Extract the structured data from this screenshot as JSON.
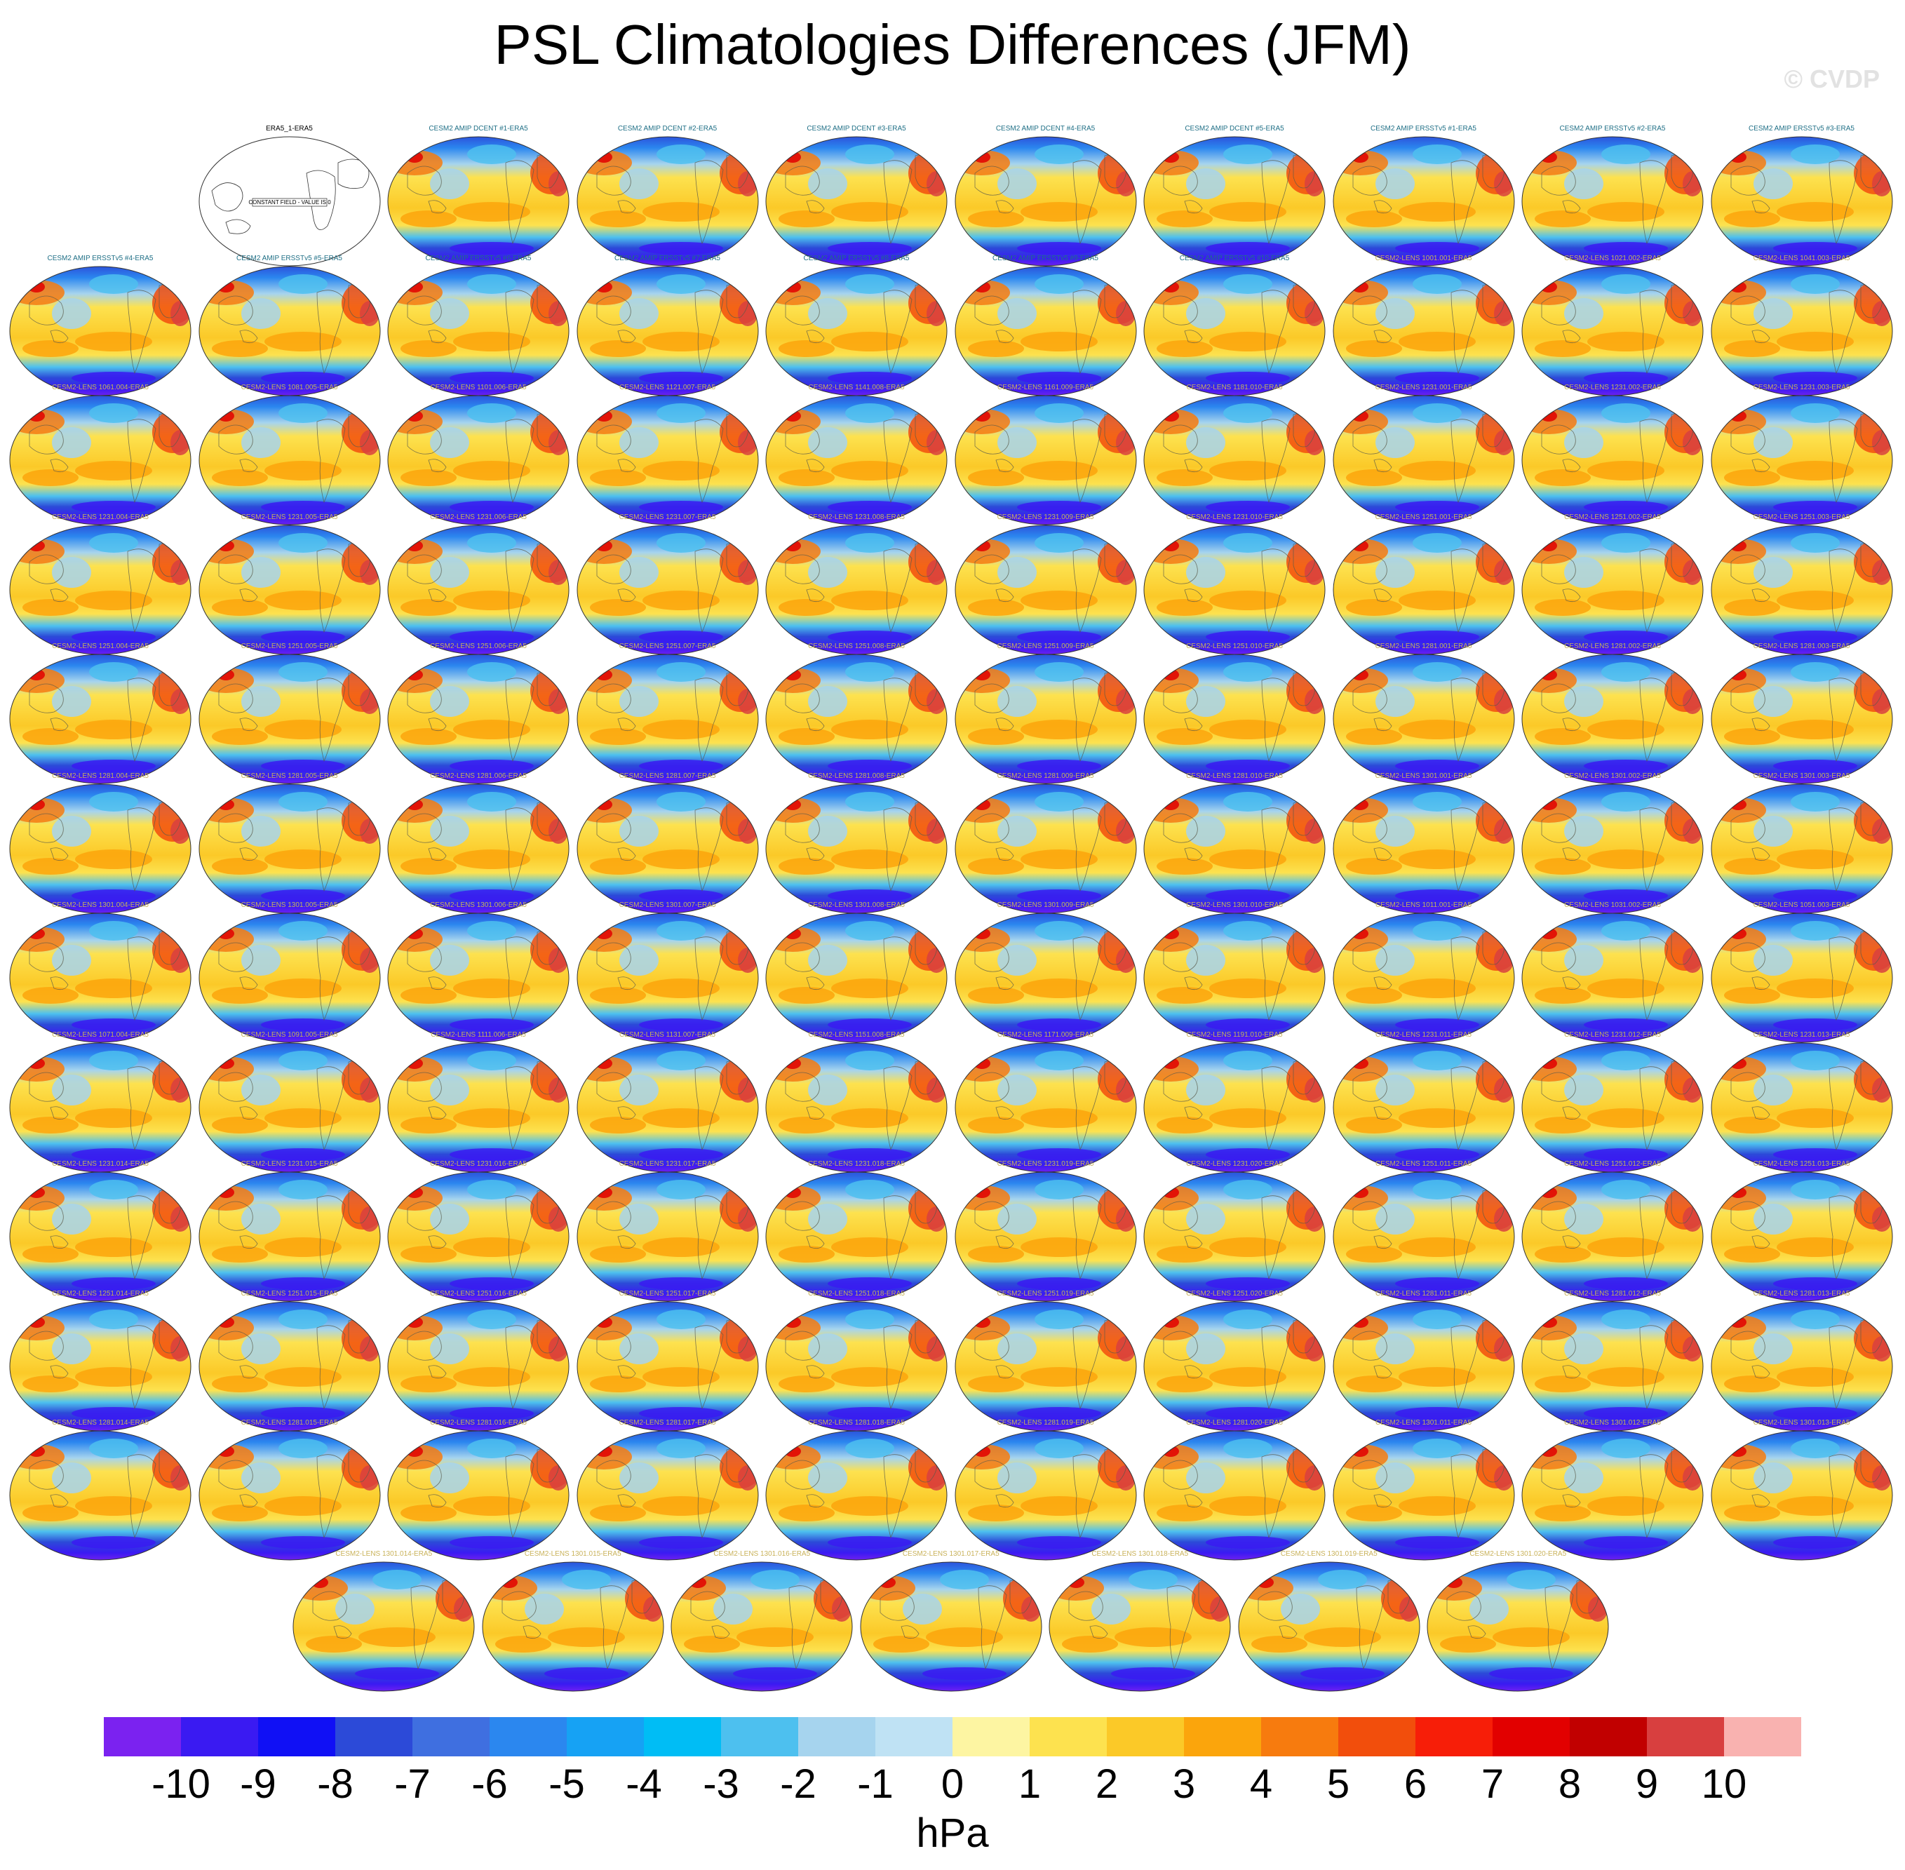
{
  "title": "PSL Climatologies Differences (JFM)",
  "watermark": "© CVDP",
  "chart_data": {
    "type": "heatmap",
    "title": "PSL Climatologies Differences (JFM)",
    "projection": "global map panels (Robinson-style ellipse)",
    "units": "hPa",
    "colorbar": {
      "tick_labels": [
        "-10",
        "-9",
        "-8",
        "-7",
        "-6",
        "-5",
        "-4",
        "-3",
        "-2",
        "-1",
        "0",
        "1",
        "2",
        "3",
        "4",
        "5",
        "6",
        "7",
        "8",
        "9",
        "10"
      ],
      "colors": [
        "#7b22f0",
        "#3a1af2",
        "#1010f5",
        "#2c4ad8",
        "#3f6fe0",
        "#2b87ef",
        "#16a2f4",
        "#00bdf5",
        "#4dc0ef",
        "#a6d4ee",
        "#bfe2f4",
        "#fdf5a2",
        "#fde24f",
        "#fbc928",
        "#fba50c",
        "#f77b0e",
        "#f24e0c",
        "#f71e08",
        "#e20000",
        "#c10000",
        "#d83f3f",
        "#f9b2b0"
      ]
    },
    "panels": [
      {
        "label": "ERA5_1-ERA5",
        "reference": true,
        "note": "CONSTANT FIELD - VALUE IS 0"
      },
      {
        "label": "CESM2 AMIP DCENT #1-ERA5",
        "group": "amip"
      },
      {
        "label": "CESM2 AMIP DCENT #2-ERA5",
        "group": "amip"
      },
      {
        "label": "CESM2 AMIP DCENT #3-ERA5",
        "group": "amip"
      },
      {
        "label": "CESM2 AMIP DCENT #4-ERA5",
        "group": "amip"
      },
      {
        "label": "CESM2 AMIP DCENT #5-ERA5",
        "group": "amip"
      },
      {
        "label": "CESM2 AMIP ERSSTv5 #1-ERA5",
        "group": "amip"
      },
      {
        "label": "CESM2 AMIP ERSSTv5 #2-ERA5",
        "group": "amip"
      },
      {
        "label": "CESM2 AMIP ERSSTv5 #3-ERA5",
        "group": "amip"
      },
      {
        "label": "CESM2 AMIP ERSSTv5 #4-ERA5",
        "group": "amip"
      },
      {
        "label": "CESM2 AMIP ERSSTv5 #5-ERA5",
        "group": "amip"
      },
      {
        "label": "CESM2 AMIP ERSSTv5 #6-ERA5",
        "group": "amip"
      },
      {
        "label": "CESM2 AMIP ERSSTv5 #7-ERA5",
        "group": "amip"
      },
      {
        "label": "CESM2 AMIP ERSSTv5 #8-ERA5",
        "group": "amip"
      },
      {
        "label": "CESM2 AMIP ERSSTv5 #9-ERA5",
        "group": "amip"
      },
      {
        "label": "CESM2 AMIP ERSSTv5 #10-ERA5",
        "group": "amip"
      },
      {
        "label": "CESM2-LENS 1001.001-ERA5",
        "group": "lens"
      },
      {
        "label": "CESM2-LENS 1021.002-ERA5",
        "group": "lens"
      },
      {
        "label": "CESM2-LENS 1041.003-ERA5",
        "group": "lens"
      },
      {
        "label": "CESM2-LENS 1061.004-ERA5",
        "group": "lens"
      },
      {
        "label": "CESM2-LENS 1081.005-ERA5",
        "group": "lens"
      },
      {
        "label": "CESM2-LENS 1101.006-ERA5",
        "group": "lens"
      },
      {
        "label": "CESM2-LENS 1121.007-ERA5",
        "group": "lens"
      },
      {
        "label": "CESM2-LENS 1141.008-ERA5",
        "group": "lens"
      },
      {
        "label": "CESM2-LENS 1161.009-ERA5",
        "group": "lens"
      },
      {
        "label": "CESM2-LENS 1181.010-ERA5",
        "group": "lens"
      },
      {
        "label": "CESM2-LENS 1231.001-ERA5",
        "group": "lens"
      },
      {
        "label": "CESM2-LENS 1231.002-ERA5",
        "group": "lens"
      },
      {
        "label": "CESM2-LENS 1231.003-ERA5",
        "group": "lens"
      },
      {
        "label": "CESM2-LENS 1231.004-ERA5",
        "group": "lens"
      },
      {
        "label": "CESM2-LENS 1231.005-ERA5",
        "group": "lens"
      },
      {
        "label": "CESM2-LENS 1231.006-ERA5",
        "group": "lens"
      },
      {
        "label": "CESM2-LENS 1231.007-ERA5",
        "group": "lens"
      },
      {
        "label": "CESM2-LENS 1231.008-ERA5",
        "group": "lens"
      },
      {
        "label": "CESM2-LENS 1231.009-ERA5",
        "group": "lens"
      },
      {
        "label": "CESM2-LENS 1231.010-ERA5",
        "group": "lens"
      },
      {
        "label": "CESM2-LENS 1251.001-ERA5",
        "group": "lens"
      },
      {
        "label": "CESM2-LENS 1251.002-ERA5",
        "group": "lens"
      },
      {
        "label": "CESM2-LENS 1251.003-ERA5",
        "group": "lens"
      },
      {
        "label": "CESM2-LENS 1251.004-ERA5",
        "group": "lens"
      },
      {
        "label": "CESM2-LENS 1251.005-ERA5",
        "group": "lens"
      },
      {
        "label": "CESM2-LENS 1251.006-ERA5",
        "group": "lens"
      },
      {
        "label": "CESM2-LENS 1251.007-ERA5",
        "group": "lens"
      },
      {
        "label": "CESM2-LENS 1251.008-ERA5",
        "group": "lens"
      },
      {
        "label": "CESM2-LENS 1251.009-ERA5",
        "group": "lens"
      },
      {
        "label": "CESM2-LENS 1251.010-ERA5",
        "group": "lens"
      },
      {
        "label": "CESM2-LENS 1281.001-ERA5",
        "group": "lens"
      },
      {
        "label": "CESM2-LENS 1281.002-ERA5",
        "group": "lens"
      },
      {
        "label": "CESM2-LENS 1281.003-ERA5",
        "group": "lens"
      },
      {
        "label": "CESM2-LENS 1281.004-ERA5",
        "group": "lens"
      },
      {
        "label": "CESM2-LENS 1281.005-ERA5",
        "group": "lens"
      },
      {
        "label": "CESM2-LENS 1281.006-ERA5",
        "group": "lens"
      },
      {
        "label": "CESM2-LENS 1281.007-ERA5",
        "group": "lens"
      },
      {
        "label": "CESM2-LENS 1281.008-ERA5",
        "group": "lens"
      },
      {
        "label": "CESM2-LENS 1281.009-ERA5",
        "group": "lens"
      },
      {
        "label": "CESM2-LENS 1281.010-ERA5",
        "group": "lens"
      },
      {
        "label": "CESM2-LENS 1301.001-ERA5",
        "group": "lens"
      },
      {
        "label": "CESM2-LENS 1301.002-ERA5",
        "group": "lens"
      },
      {
        "label": "CESM2-LENS 1301.003-ERA5",
        "group": "lens"
      },
      {
        "label": "CESM2-LENS 1301.004-ERA5",
        "group": "lens"
      },
      {
        "label": "CESM2-LENS 1301.005-ERA5",
        "group": "lens"
      },
      {
        "label": "CESM2-LENS 1301.006-ERA5",
        "group": "lens"
      },
      {
        "label": "CESM2-LENS 1301.007-ERA5",
        "group": "lens"
      },
      {
        "label": "CESM2-LENS 1301.008-ERA5",
        "group": "lens"
      },
      {
        "label": "CESM2-LENS 1301.009-ERA5",
        "group": "lens"
      },
      {
        "label": "CESM2-LENS 1301.010-ERA5",
        "group": "lens"
      },
      {
        "label": "CESM2-LENS 1011.001-ERA5",
        "group": "lens"
      },
      {
        "label": "CESM2-LENS 1031.002-ERA5",
        "group": "lens"
      },
      {
        "label": "CESM2-LENS 1051.003-ERA5",
        "group": "lens"
      },
      {
        "label": "CESM2-LENS 1071.004-ERA5",
        "group": "lens"
      },
      {
        "label": "CESM2-LENS 1091.005-ERA5",
        "group": "lens"
      },
      {
        "label": "CESM2-LENS 1111.006-ERA5",
        "group": "lens"
      },
      {
        "label": "CESM2-LENS 1131.007-ERA5",
        "group": "lens"
      },
      {
        "label": "CESM2-LENS 1151.008-ERA5",
        "group": "lens"
      },
      {
        "label": "CESM2-LENS 1171.009-ERA5",
        "group": "lens"
      },
      {
        "label": "CESM2-LENS 1191.010-ERA5",
        "group": "lens"
      },
      {
        "label": "CESM2-LENS 1231.011-ERA5",
        "group": "lens"
      },
      {
        "label": "CESM2-LENS 1231.012-ERA5",
        "group": "lens"
      },
      {
        "label": "CESM2-LENS 1231.013-ERA5",
        "group": "lens"
      },
      {
        "label": "CESM2-LENS 1231.014-ERA5",
        "group": "lens"
      },
      {
        "label": "CESM2-LENS 1231.015-ERA5",
        "group": "lens"
      },
      {
        "label": "CESM2-LENS 1231.016-ERA5",
        "group": "lens"
      },
      {
        "label": "CESM2-LENS 1231.017-ERA5",
        "group": "lens"
      },
      {
        "label": "CESM2-LENS 1231.018-ERA5",
        "group": "lens"
      },
      {
        "label": "CESM2-LENS 1231.019-ERA5",
        "group": "lens"
      },
      {
        "label": "CESM2-LENS 1231.020-ERA5",
        "group": "lens"
      },
      {
        "label": "CESM2-LENS 1251.011-ERA5",
        "group": "lens"
      },
      {
        "label": "CESM2-LENS 1251.012-ERA5",
        "group": "lens"
      },
      {
        "label": "CESM2-LENS 1251.013-ERA5",
        "group": "lens"
      },
      {
        "label": "CESM2-LENS 1251.014-ERA5",
        "group": "lens"
      },
      {
        "label": "CESM2-LENS 1251.015-ERA5",
        "group": "lens"
      },
      {
        "label": "CESM2-LENS 1251.016-ERA5",
        "group": "lens"
      },
      {
        "label": "CESM2-LENS 1251.017-ERA5",
        "group": "lens"
      },
      {
        "label": "CESM2-LENS 1251.018-ERA5",
        "group": "lens"
      },
      {
        "label": "CESM2-LENS 1251.019-ERA5",
        "group": "lens"
      },
      {
        "label": "CESM2-LENS 1251.020-ERA5",
        "group": "lens"
      },
      {
        "label": "CESM2-LENS 1281.011-ERA5",
        "group": "lens"
      },
      {
        "label": "CESM2-LENS 1281.012-ERA5",
        "group": "lens"
      },
      {
        "label": "CESM2-LENS 1281.013-ERA5",
        "group": "lens"
      },
      {
        "label": "CESM2-LENS 1281.014-ERA5",
        "group": "lens"
      },
      {
        "label": "CESM2-LENS 1281.015-ERA5",
        "group": "lens"
      },
      {
        "label": "CESM2-LENS 1281.016-ERA5",
        "group": "lens"
      },
      {
        "label": "CESM2-LENS 1281.017-ERA5",
        "group": "lens"
      },
      {
        "label": "CESM2-LENS 1281.018-ERA5",
        "group": "lens"
      },
      {
        "label": "CESM2-LENS 1281.019-ERA5",
        "group": "lens"
      },
      {
        "label": "CESM2-LENS 1281.020-ERA5",
        "group": "lens"
      },
      {
        "label": "CESM2-LENS 1301.011-ERA5",
        "group": "lens"
      },
      {
        "label": "CESM2-LENS 1301.012-ERA5",
        "group": "lens"
      },
      {
        "label": "CESM2-LENS 1301.013-ERA5",
        "group": "lens"
      },
      {
        "label": "CESM2-LENS 1301.014-ERA5",
        "group": "lens"
      },
      {
        "label": "CESM2-LENS 1301.015-ERA5",
        "group": "lens"
      },
      {
        "label": "CESM2-LENS 1301.016-ERA5",
        "group": "lens"
      },
      {
        "label": "CESM2-LENS 1301.017-ERA5",
        "group": "lens"
      },
      {
        "label": "CESM2-LENS 1301.018-ERA5",
        "group": "lens"
      },
      {
        "label": "CESM2-LENS 1301.019-ERA5",
        "group": "lens"
      },
      {
        "label": "CESM2-LENS 1301.020-ERA5",
        "group": "lens"
      }
    ],
    "panel_title_colors": {
      "reference": "#000000",
      "amip": "#1f6f86",
      "lens": "#c9b25a"
    }
  }
}
